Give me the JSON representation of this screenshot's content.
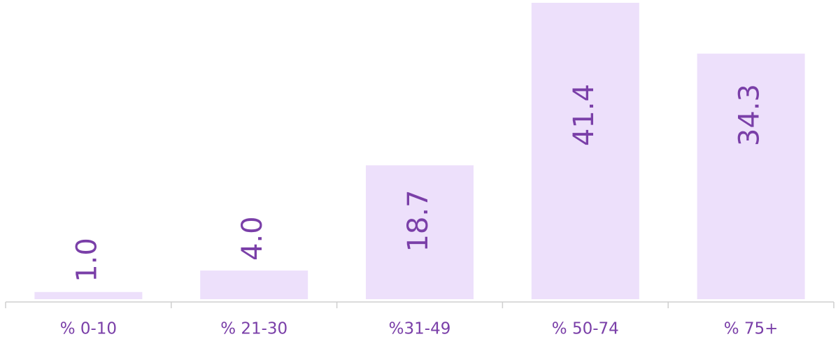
{
  "chart_data": {
    "type": "bar",
    "categories": [
      "% 0-10",
      "% 21-30",
      "%31-49",
      "% 50-74",
      "% 75+"
    ],
    "values": [
      1.0,
      4.0,
      18.7,
      41.4,
      34.3
    ],
    "value_labels": [
      "1.0",
      "4.0",
      "18.7",
      "41.4",
      "34.3"
    ],
    "color": "#ede0fb"
  }
}
